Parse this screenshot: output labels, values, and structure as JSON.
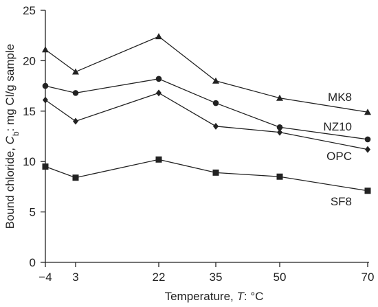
{
  "chart_data": {
    "type": "line",
    "title": "",
    "xlabel_parts": [
      "Temperature, ",
      "T",
      ": °C"
    ],
    "ylabel_parts": [
      "Bound chloride, ",
      "C",
      "b",
      ": mg Cl/g sample"
    ],
    "x": [
      -4,
      3,
      22,
      35,
      50,
      70
    ],
    "x_tick_labels": [
      "−4",
      "3",
      "22",
      "35",
      "50",
      "70"
    ],
    "y_ticks": [
      0,
      5,
      10,
      15,
      20,
      25
    ],
    "y_tick_labels": [
      "0",
      "5",
      "10",
      "15",
      "20",
      "25"
    ],
    "ylim": [
      0,
      25
    ],
    "grid": false,
    "legend": "inline labels at line ends",
    "series": [
      {
        "name": "MK8",
        "marker": "triangle",
        "values": [
          21.1,
          18.9,
          22.4,
          18.0,
          16.3,
          14.9
        ]
      },
      {
        "name": "NZ10",
        "marker": "circle",
        "values": [
          17.5,
          16.8,
          18.2,
          15.8,
          13.4,
          12.2
        ]
      },
      {
        "name": "OPC",
        "marker": "diamond",
        "values": [
          16.1,
          14.0,
          16.8,
          13.5,
          12.9,
          11.2
        ]
      },
      {
        "name": "SF8",
        "marker": "square",
        "values": [
          9.5,
          8.4,
          10.2,
          8.9,
          8.5,
          7.1
        ]
      }
    ]
  }
}
